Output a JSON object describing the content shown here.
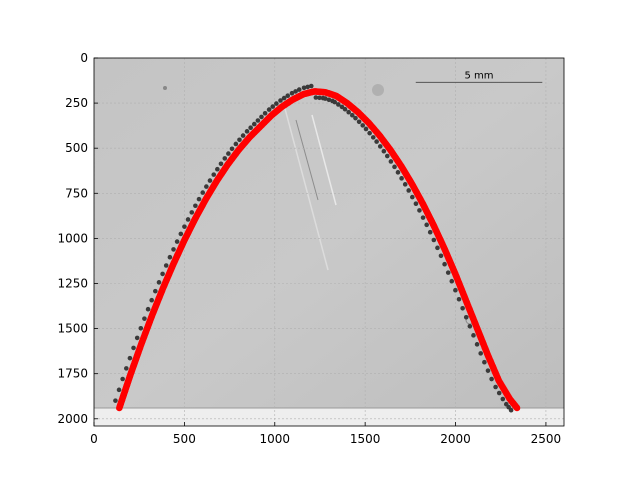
{
  "chart_data": {
    "type": "scatter",
    "title": "",
    "xlabel": "",
    "ylabel": "",
    "xlim": [
      0,
      2600
    ],
    "ylim": [
      2040,
      0
    ],
    "y_inverted": true,
    "grid": true,
    "background": "grayscale microscope image",
    "xticks": [
      0,
      500,
      1000,
      1500,
      2000,
      2500
    ],
    "yticks": [
      0,
      250,
      500,
      750,
      1000,
      1250,
      1500,
      1750,
      2000
    ],
    "scale_bar": {
      "label": "5 mm",
      "x_start": 1780,
      "x_end": 2480,
      "y": 135
    },
    "series": [
      {
        "color": "#ff0000",
        "marker": "o",
        "x": [
          140,
          200,
          260,
          320,
          380,
          440,
          500,
          560,
          620,
          680,
          740,
          800,
          860,
          920,
          980,
          1040,
          1100,
          1160,
          1220,
          1280,
          1340,
          1400,
          1460,
          1520,
          1580,
          1640,
          1700,
          1760,
          1820,
          1880,
          1940,
          2000,
          2060,
          2120,
          2180,
          2240,
          2300,
          2340
        ],
        "y": [
          1940,
          1760,
          1590,
          1430,
          1280,
          1140,
          1010,
          890,
          780,
          680,
          590,
          510,
          440,
          380,
          320,
          270,
          230,
          200,
          185,
          190,
          210,
          250,
          300,
          360,
          430,
          510,
          600,
          700,
          810,
          930,
          1060,
          1200,
          1350,
          1500,
          1650,
          1790,
          1890,
          1940
        ]
      }
    ]
  }
}
